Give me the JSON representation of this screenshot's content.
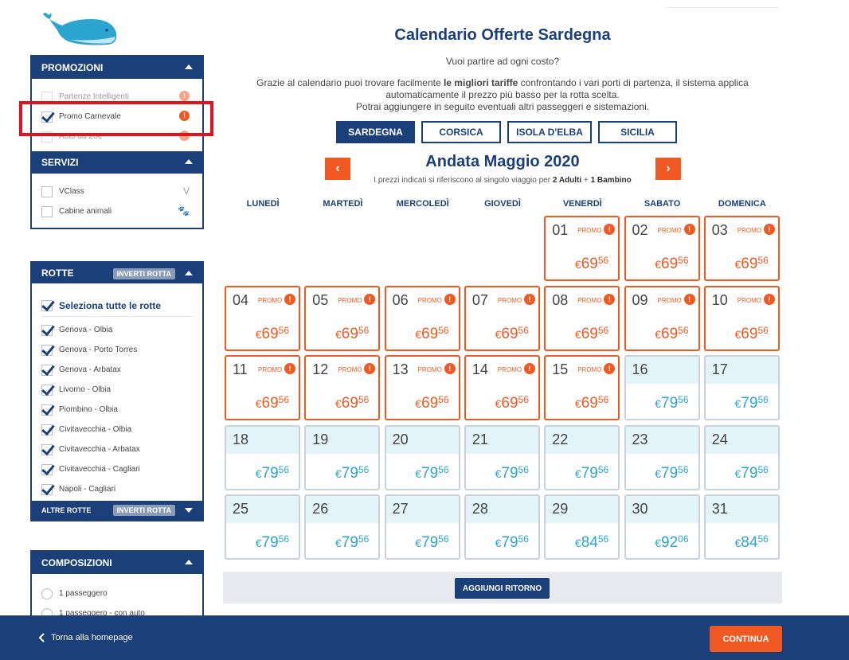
{
  "colors": {
    "navy": "#1b3f78",
    "orange": "#f05a22",
    "teal": "#2ba5cf",
    "highlight": "#e0141e"
  },
  "sidebar": {
    "promozioni": {
      "title": "PROMOZIONI",
      "items": [
        {
          "label": "Partenze Intelligenti",
          "checked": false
        },
        {
          "label": "Promo Carnevale",
          "checked": true
        },
        {
          "label": "Auto da 20€",
          "checked": false
        }
      ]
    },
    "servizi": {
      "title": "SERVIZI",
      "items": [
        {
          "label": "VClass",
          "icon": "v-class-icon"
        },
        {
          "label": "Cabine animali",
          "icon": "paw-icon"
        }
      ]
    },
    "rotte": {
      "title": "ROTTE",
      "invert_label": "INVERTI ROTTA",
      "select_all": "Seleziona tutte le rotte",
      "items": [
        "Genova - Olbia",
        "Genova - Porto Torres",
        "Genova - Arbatax",
        "Livorno - Olbia",
        "Piombino - Olbia",
        "Civitavecchia - Olbia",
        "Civitavecchia - Arbatax",
        "Civitavecchia - Cagliari",
        "Napoli - Cagliari"
      ],
      "other_routes": "ALTRE ROTTE",
      "other_invert_label": "INVERTI ROTTA"
    },
    "composizioni": {
      "title": "COMPOSIZIONI",
      "items": [
        "1 passeggero",
        "1 passeggero - con auto"
      ]
    }
  },
  "main": {
    "title": "Calendario Offerte Sardegna",
    "question": "Vuoi partire ad ogni costo?",
    "intro_pre": "Grazie al calendario puoi trovare facilmente ",
    "intro_bold": "le migliori tariffe",
    "intro_post": " confrontando i vari porti di partenza, il sistema applica automaticamente il prezzo più basso per la rotta scelta.",
    "intro_line3": "Potrai aggiungere in seguito eventuali altri passeggeri e sistemazioni.",
    "tabs": [
      "SARDEGNA",
      "CORSICA",
      "ISOLA D'ELBA",
      "SICILIA"
    ],
    "month_title": "Andata Maggio 2020",
    "month_sub_pre": "I prezzi indicati si riferiscono al singolo viaggio per ",
    "month_sub_adults": "2 Adulti",
    "month_sub_mid": " + ",
    "month_sub_child": "1 Bambino",
    "prev_symbol": "‹",
    "next_symbol": "›",
    "weekdays": [
      "LUNEDÌ",
      "MARTEDÌ",
      "MERCOLEDÌ",
      "GIOVEDÌ",
      "VENERDÌ",
      "SABATO",
      "DOMENICA"
    ],
    "promo_tag": "PROMO",
    "warn_symbol": "!",
    "currency": "€",
    "start_offset": 4,
    "days": [
      {
        "d": "01",
        "p": "69",
        "c": "56",
        "promo": true
      },
      {
        "d": "02",
        "p": "69",
        "c": "56",
        "promo": true
      },
      {
        "d": "03",
        "p": "69",
        "c": "56",
        "promo": true
      },
      {
        "d": "04",
        "p": "69",
        "c": "56",
        "promo": true
      },
      {
        "d": "05",
        "p": "69",
        "c": "56",
        "promo": true
      },
      {
        "d": "06",
        "p": "69",
        "c": "56",
        "promo": true
      },
      {
        "d": "07",
        "p": "69",
        "c": "56",
        "promo": true
      },
      {
        "d": "08",
        "p": "69",
        "c": "56",
        "promo": true
      },
      {
        "d": "09",
        "p": "69",
        "c": "56",
        "promo": true
      },
      {
        "d": "10",
        "p": "69",
        "c": "56",
        "promo": true
      },
      {
        "d": "11",
        "p": "69",
        "c": "56",
        "promo": true
      },
      {
        "d": "12",
        "p": "69",
        "c": "56",
        "promo": true
      },
      {
        "d": "13",
        "p": "69",
        "c": "56",
        "promo": true
      },
      {
        "d": "14",
        "p": "69",
        "c": "56",
        "promo": true
      },
      {
        "d": "15",
        "p": "69",
        "c": "56",
        "promo": true
      },
      {
        "d": "16",
        "p": "79",
        "c": "56",
        "promo": false
      },
      {
        "d": "17",
        "p": "79",
        "c": "56",
        "promo": false
      },
      {
        "d": "18",
        "p": "79",
        "c": "56",
        "promo": false
      },
      {
        "d": "19",
        "p": "79",
        "c": "56",
        "promo": false
      },
      {
        "d": "20",
        "p": "79",
        "c": "56",
        "promo": false
      },
      {
        "d": "21",
        "p": "79",
        "c": "56",
        "promo": false
      },
      {
        "d": "22",
        "p": "79",
        "c": "56",
        "promo": false
      },
      {
        "d": "23",
        "p": "79",
        "c": "56",
        "promo": false
      },
      {
        "d": "24",
        "p": "79",
        "c": "56",
        "promo": false
      },
      {
        "d": "25",
        "p": "79",
        "c": "56",
        "promo": false
      },
      {
        "d": "26",
        "p": "79",
        "c": "56",
        "promo": false
      },
      {
        "d": "27",
        "p": "79",
        "c": "56",
        "promo": false
      },
      {
        "d": "28",
        "p": "79",
        "c": "56",
        "promo": false
      },
      {
        "d": "29",
        "p": "84",
        "c": "56",
        "promo": false
      },
      {
        "d": "30",
        "p": "92",
        "c": "06",
        "promo": false
      },
      {
        "d": "31",
        "p": "84",
        "c": "56",
        "promo": false
      }
    ],
    "add_return": "AGGIUNGI RITORNO"
  },
  "footer": {
    "back": "Torna alla homepage",
    "continue": "CONTINUA"
  }
}
